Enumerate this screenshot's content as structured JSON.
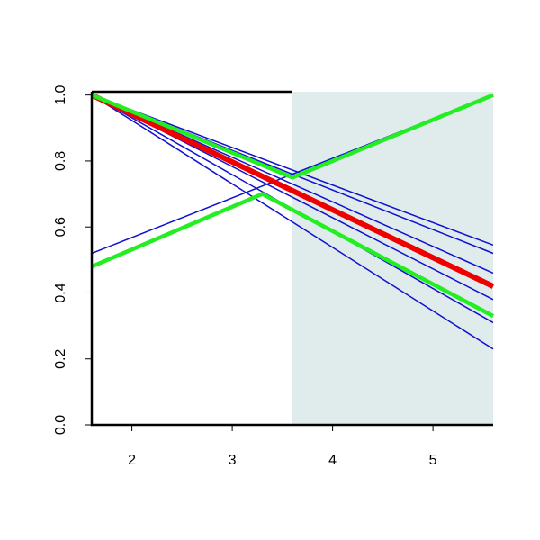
{
  "chart_data": {
    "type": "line",
    "xlim": [
      1.6,
      5.6
    ],
    "ylim": [
      0,
      1.01
    ],
    "xticks": [
      2,
      3,
      4,
      5
    ],
    "yticks": [
      {
        "value": 0,
        "label": "0.0"
      },
      0.2,
      0.4,
      0.6,
      0.8,
      {
        "value": 1,
        "label": "1.0"
      }
    ],
    "shaded_region": {
      "x": [
        3.6,
        5.6
      ],
      "color": "#dfeceb"
    },
    "series": [
      {
        "color": "#1010d0",
        "width": 1.5,
        "x": [
          1.6,
          5.6
        ],
        "values": [
          1.0,
          0.545
        ]
      },
      {
        "color": "#1010d0",
        "width": 1.5,
        "x": [
          1.6,
          5.6
        ],
        "values": [
          1.0,
          0.52
        ]
      },
      {
        "color": "#1010d0",
        "width": 1.5,
        "x": [
          1.6,
          5.6
        ],
        "values": [
          1.0,
          0.46
        ]
      },
      {
        "color": "#1010d0",
        "width": 1.5,
        "x": [
          1.6,
          5.6
        ],
        "values": [
          1.0,
          0.38
        ]
      },
      {
        "color": "#1010d0",
        "width": 1.5,
        "x": [
          1.6,
          5.6
        ],
        "values": [
          1.0,
          0.31
        ]
      },
      {
        "color": "#1010d0",
        "width": 1.5,
        "x": [
          1.6,
          5.6
        ],
        "values": [
          1.0,
          0.23
        ]
      },
      {
        "color": "#1010d0",
        "width": 1.5,
        "x": [
          1.6,
          5.6
        ],
        "values": [
          0.52,
          1.0
        ]
      },
      {
        "color": "#ee0000",
        "width": 6,
        "x": [
          1.6,
          5.6
        ],
        "values": [
          1.0,
          0.42
        ]
      },
      {
        "color": "#22ee22",
        "width": 4.5,
        "x": [
          1.6,
          3.6,
          5.6
        ],
        "values": [
          1.0,
          0.75,
          1.0
        ]
      },
      {
        "color": "#22ee22",
        "width": 4.5,
        "x": [
          1.6,
          3.3,
          5.6
        ],
        "values": [
          0.48,
          0.7,
          0.33
        ]
      }
    ]
  }
}
